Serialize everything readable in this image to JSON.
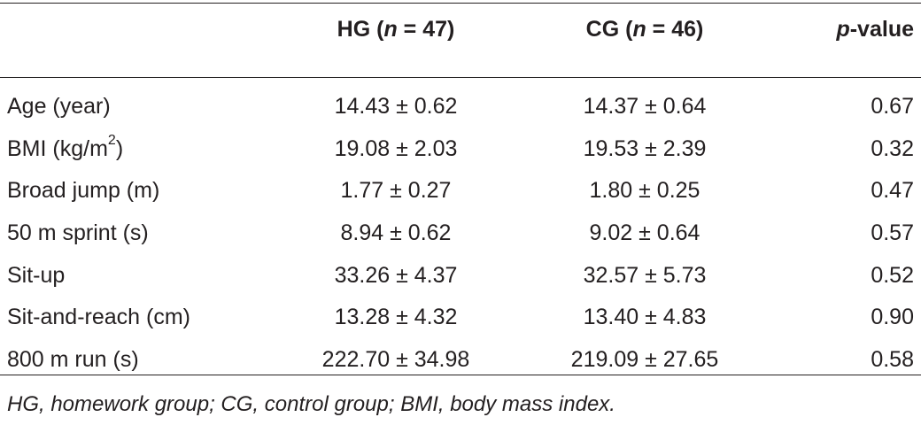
{
  "header": {
    "col_group1": "HG (",
    "col_group1_n": "n",
    "col_group1_rest": " = 47)",
    "col_group2": "CG (",
    "col_group2_n": "n",
    "col_group2_rest": " = 46)",
    "col_p_italic": "p",
    "col_p_rest": "-value"
  },
  "rows": [
    {
      "label": "Age (year)",
      "hg": "14.43 ± 0.62",
      "cg": "14.37 ± 0.64",
      "p": "0.67"
    },
    {
      "label": "BMI (kg/m",
      "label_sup": "2",
      "label_end": ")",
      "hg": "19.08 ± 2.03",
      "cg": "19.53 ± 2.39",
      "p": "0.32"
    },
    {
      "label": "Broad jump (m)",
      "hg": "1.77 ± 0.27",
      "cg": "1.80 ± 0.25",
      "p": "0.47"
    },
    {
      "label": "50 m sprint (s)",
      "hg": "8.94 ± 0.62",
      "cg": "9.02 ± 0.64",
      "p": "0.57"
    },
    {
      "label": "Sit-up",
      "hg": "33.26 ± 4.37",
      "cg": "32.57 ± 5.73",
      "p": "0.52"
    },
    {
      "label": "Sit-and-reach (cm)",
      "hg": "13.28 ± 4.32",
      "cg": "13.40 ± 4.83",
      "p": "0.90"
    },
    {
      "label": "800 m run (s)",
      "hg": "222.70 ± 34.98",
      "cg": "219.09 ± 27.65",
      "p": "0.58"
    }
  ],
  "footnote": "HG, homework group; CG, control group; BMI, body mass index."
}
